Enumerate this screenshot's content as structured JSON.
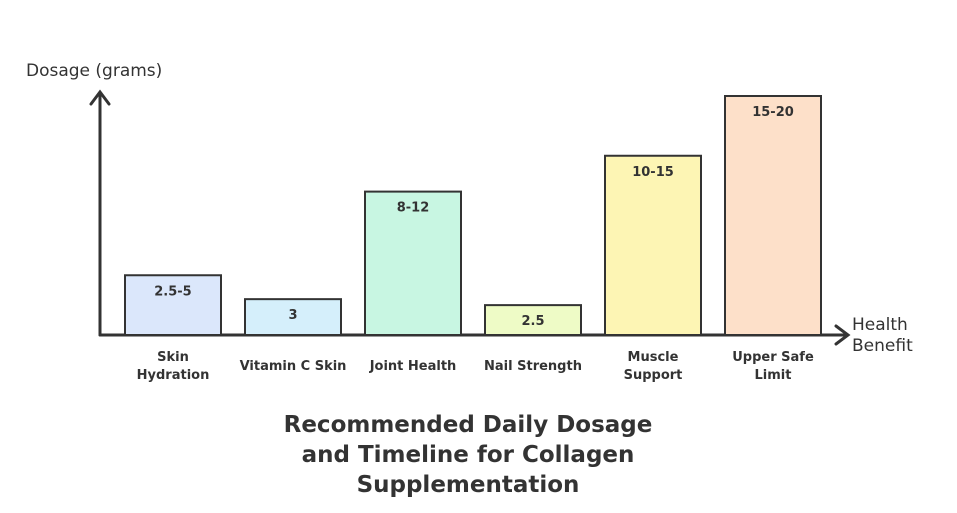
{
  "chart_data": {
    "type": "bar",
    "title": "Recommended Daily Dosage and Timeline for Collagen Supplementation",
    "y_label": "Dosage (grams)",
    "x_label": "Health Benefit",
    "categories": [
      "Skin Hydration",
      "Vitamin C Skin",
      "Joint Health",
      "Nail Strength",
      "Muscle Support",
      "Upper Safe Limit"
    ],
    "values": [
      5,
      3,
      12,
      2.5,
      15,
      20
    ],
    "value_labels": [
      "2.5-5",
      "3",
      "8-12",
      "2.5",
      "10-15",
      "15-20"
    ],
    "colors": [
      "#dbe7fb",
      "#d5effb",
      "#c8f6e2",
      "#eefbc6",
      "#fdf5b4",
      "#fde0c9"
    ],
    "ylim": [
      0,
      20
    ]
  }
}
